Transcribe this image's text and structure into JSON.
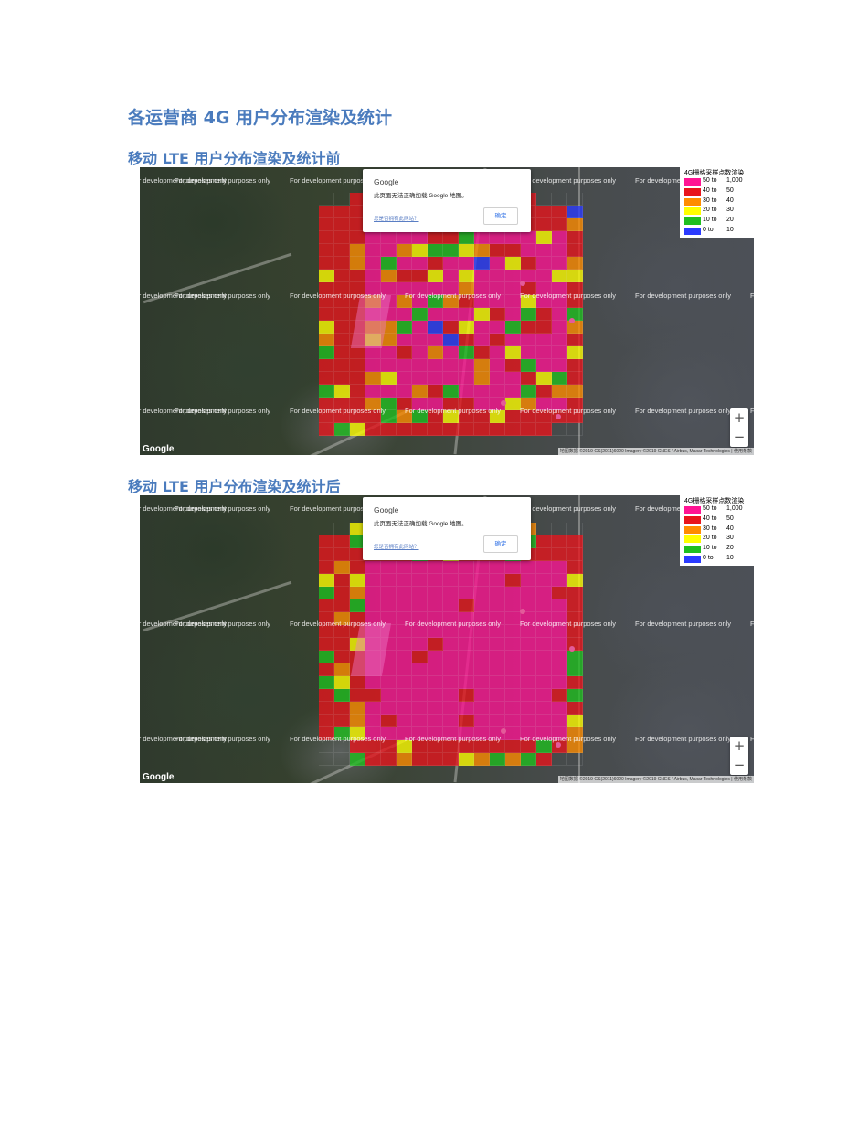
{
  "title": "各运营商 4G 用户分布渲染及统计",
  "sections": [
    {
      "heading": "移动 LTE 用户分布渲染及统计前"
    },
    {
      "heading": "移动 LTE 用户分布渲染及统计后"
    }
  ],
  "map": {
    "watermark": "For development purposes only",
    "dialog": {
      "title": "Google",
      "message": "此页面无法正确加载 Google 地图。",
      "link": "您是否拥有此网站？",
      "button": "确定"
    },
    "legend": {
      "title": "4G栅格采样点数渲染",
      "items": [
        {
          "from": "50 to",
          "to": "1,000",
          "color": "#ff1493"
        },
        {
          "from": "40 to",
          "to": "50",
          "color": "#e8141c"
        },
        {
          "from": "30 to",
          "to": "40",
          "color": "#ff8c00"
        },
        {
          "from": "20 to",
          "to": "30",
          "color": "#ffff00"
        },
        {
          "from": "10 to",
          "to": "20",
          "color": "#1fbf1f"
        },
        {
          "from": "0 to",
          "to": "10",
          "color": "#2b3bff"
        }
      ]
    },
    "zoom_in": "+",
    "zoom_out": "−",
    "logo": "Google",
    "attribution": "地图数据 ©2019 GS(2011)6020 Imagery ©2019 CNES / Airbus, Maxar Technologies | 使用条款"
  }
}
